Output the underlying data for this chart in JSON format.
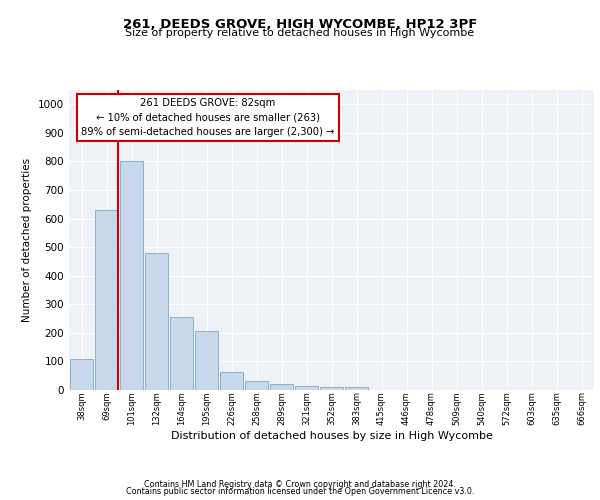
{
  "title_line1": "261, DEEDS GROVE, HIGH WYCOMBE, HP12 3PF",
  "title_line2": "Size of property relative to detached houses in High Wycombe",
  "xlabel": "Distribution of detached houses by size in High Wycombe",
  "ylabel": "Number of detached properties",
  "bar_values": [
    110,
    630,
    800,
    480,
    255,
    205,
    62,
    30,
    22,
    15,
    10,
    12,
    0,
    0,
    0,
    0,
    0,
    0,
    0,
    0,
    0
  ],
  "bar_labels": [
    "38sqm",
    "69sqm",
    "101sqm",
    "132sqm",
    "164sqm",
    "195sqm",
    "226sqm",
    "258sqm",
    "289sqm",
    "321sqm",
    "352sqm",
    "383sqm",
    "415sqm",
    "446sqm",
    "478sqm",
    "509sqm",
    "540sqm",
    "572sqm",
    "603sqm",
    "635sqm",
    "666sqm"
  ],
  "bar_color": "#c8d8ea",
  "bar_edge_color": "#7baac8",
  "vline_color": "#cc0000",
  "annotation_text": "261 DEEDS GROVE: 82sqm\n← 10% of detached houses are smaller (263)\n89% of semi-detached houses are larger (2,300) →",
  "annotation_box_facecolor": "#ffffff",
  "annotation_box_edgecolor": "#cc0000",
  "ylim": [
    0,
    1050
  ],
  "yticks": [
    0,
    100,
    200,
    300,
    400,
    500,
    600,
    700,
    800,
    900,
    1000
  ],
  "background_color": "#eef2f7",
  "grid_color": "#ffffff",
  "footer_line1": "Contains HM Land Registry data © Crown copyright and database right 2024.",
  "footer_line2": "Contains public sector information licensed under the Open Government Licence v3.0."
}
